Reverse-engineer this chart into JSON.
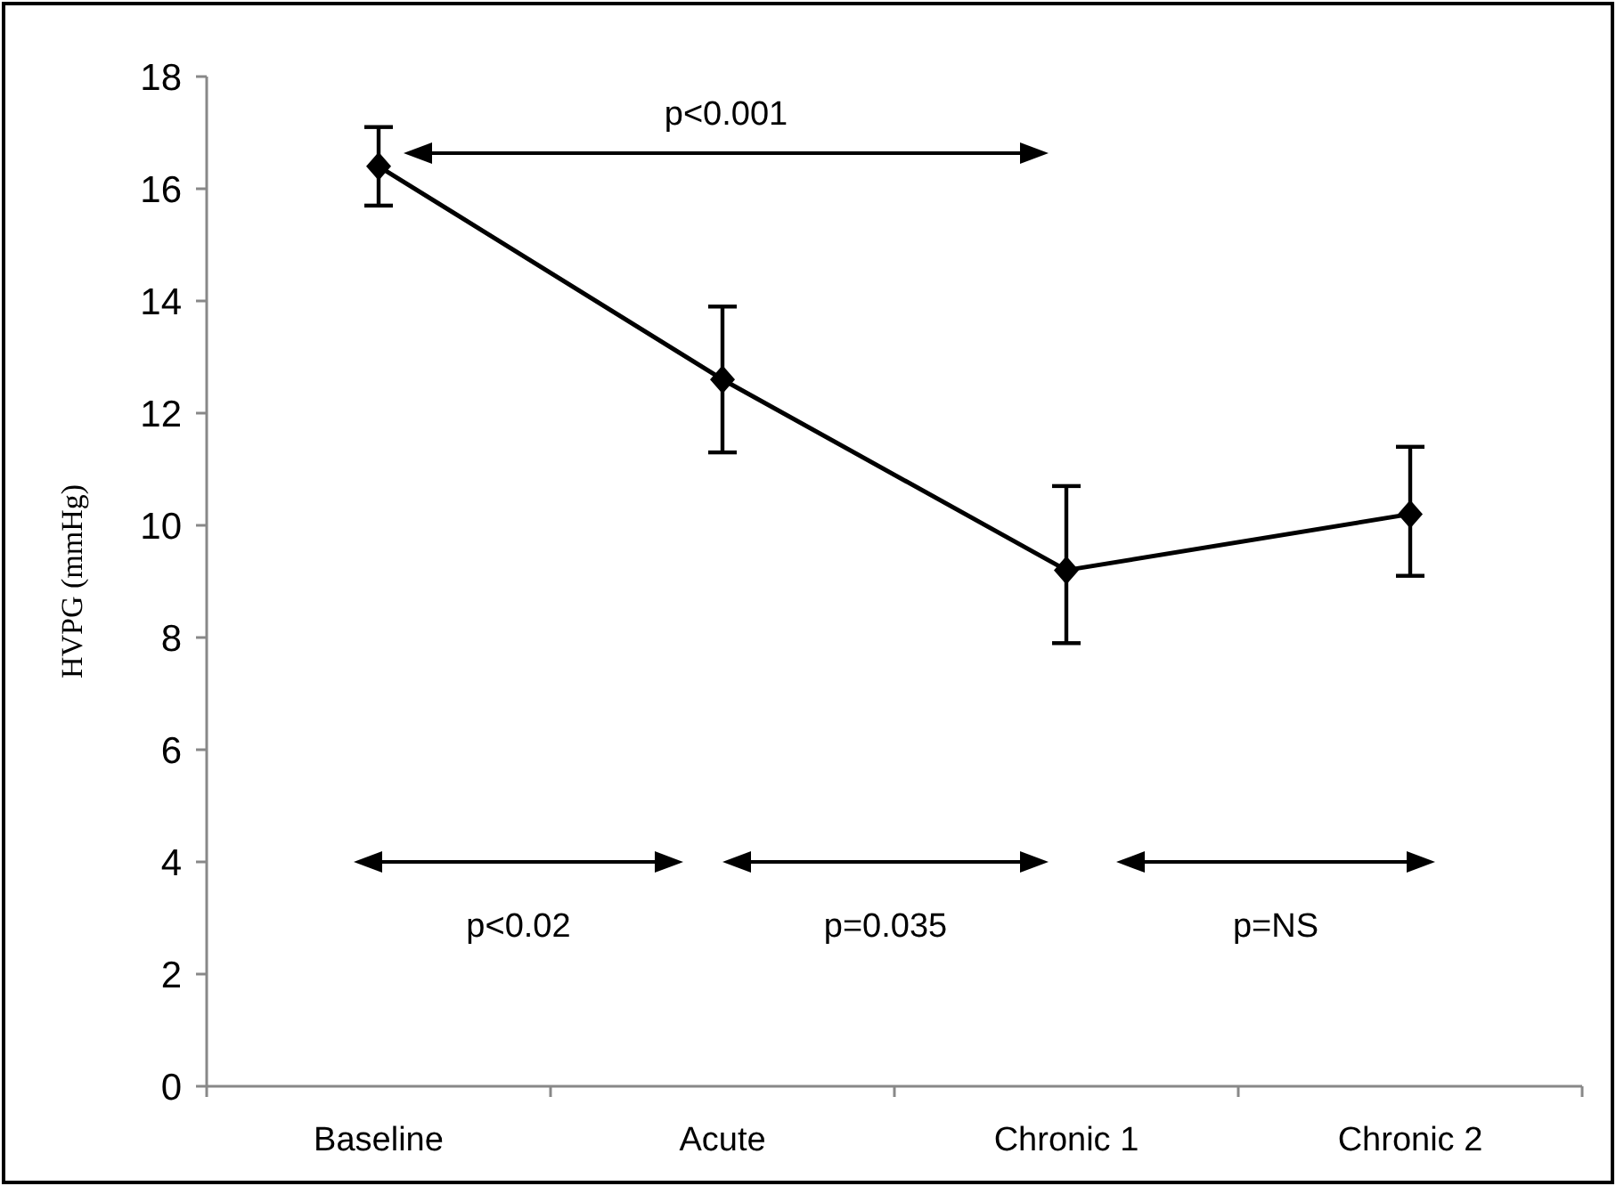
{
  "chart_data": {
    "type": "line",
    "ylabel": "HVPG (mmHg)",
    "categories": [
      "Baseline",
      "Acute",
      "Chronic 1",
      "Chronic 2"
    ],
    "values": [
      16.4,
      12.6,
      9.2,
      10.2
    ],
    "errors": [
      [
        15.7,
        17.1
      ],
      [
        11.3,
        13.9
      ],
      [
        7.9,
        10.7
      ],
      [
        9.1,
        11.4
      ]
    ],
    "color": "#000000",
    "marker": "diamond",
    "line_style": "solid",
    "ylim": [
      0,
      18
    ],
    "yticks": [
      0,
      2,
      4,
      6,
      8,
      10,
      12,
      14,
      16,
      18
    ],
    "annotations": [
      "p<0.001",
      "p<0.02",
      "p=0.035",
      "p=NS"
    ]
  }
}
